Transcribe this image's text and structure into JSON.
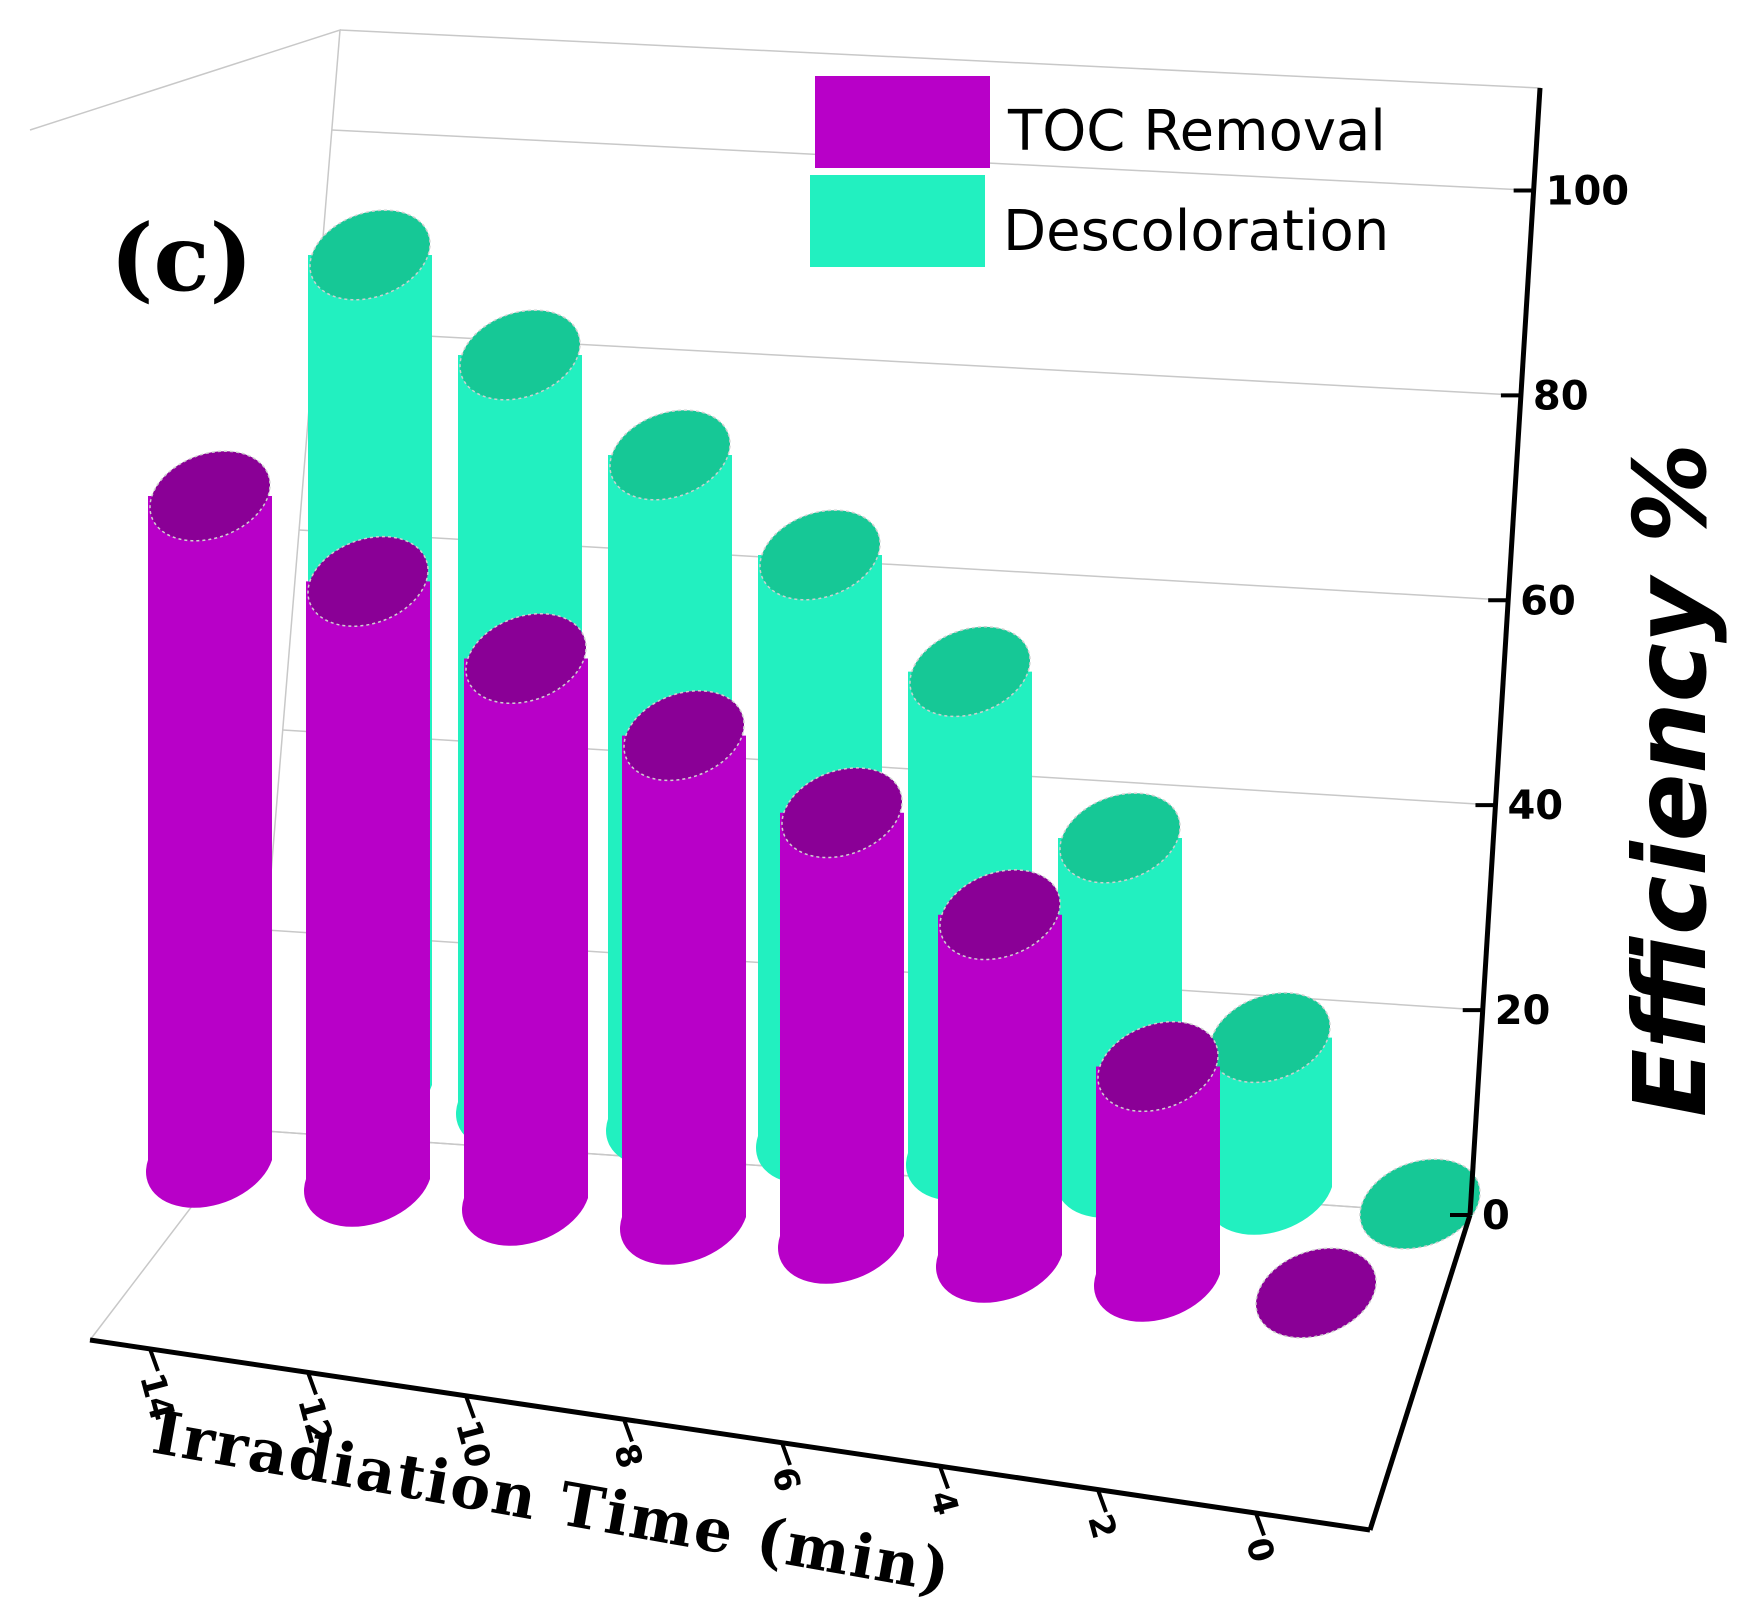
{
  "chart_data": {
    "type": "bar",
    "variant": "3d-cylinder",
    "panel_label": "(c)",
    "categories": [
      "14",
      "12",
      "10",
      "8",
      "6",
      "4",
      "2",
      "0"
    ],
    "series": [
      {
        "name": "TOC Removal",
        "color": "#b800c8",
        "top_color": "#8a0096",
        "values": [
          80,
          72,
          65,
          58,
          51,
          41,
          25,
          0
        ]
      },
      {
        "name": "Descoloration",
        "color": "#22f0c0",
        "top_color": "#16c896",
        "values": [
          100,
          90,
          80,
          70,
          58,
          40,
          18,
          0
        ]
      }
    ],
    "xlabel": "Irradiation Time (min)",
    "ylabel": "Efficiency %",
    "yticks": [
      0,
      20,
      40,
      60,
      80,
      100
    ],
    "ylim": [
      0,
      110
    ],
    "legend": "top-right"
  }
}
